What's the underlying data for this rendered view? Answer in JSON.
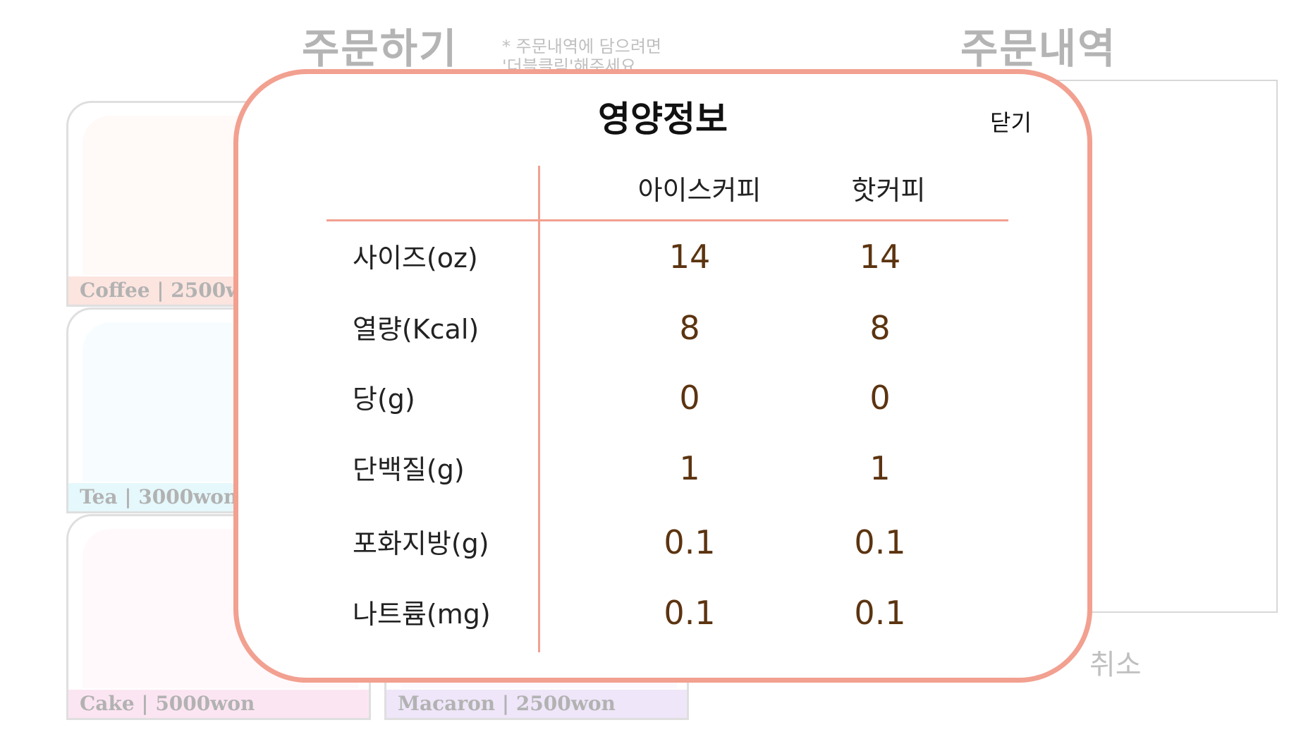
{
  "background": {
    "order_heading": "주문하기",
    "order_note_line1": "* 주문내역에 담으려면",
    "order_note_line2": "'더블클릭'해주세요",
    "history_heading": "주문내역",
    "cancel_label": "취소",
    "menu_cards": [
      {
        "label": "Coffee | 2500won",
        "color": "#f6b8ab"
      },
      {
        "label": "Tea | 3000won",
        "color": "#b9ebf7"
      },
      {
        "label": "Cake | 5000won",
        "color": "#f7b9dc"
      },
      {
        "label": "Macaron | 2500won",
        "color": "#d4bdf0"
      }
    ]
  },
  "modal": {
    "title": "영양정보",
    "close_label": "닫기",
    "columns": [
      "아이스커피",
      "핫커피"
    ],
    "rows": [
      {
        "label": "사이즈(oz)",
        "values": [
          "14",
          "14"
        ]
      },
      {
        "label": "열량(Kcal)",
        "values": [
          "8",
          "8"
        ]
      },
      {
        "label": "당(g)",
        "values": [
          "0",
          "0"
        ]
      },
      {
        "label": "단백질(g)",
        "values": [
          "1",
          "1"
        ]
      },
      {
        "label": "포화지방(g)",
        "values": [
          "0.1",
          "0.1"
        ]
      },
      {
        "label": "나트륨(mg)",
        "values": [
          "0.1",
          "0.1"
        ]
      }
    ],
    "accent_color": "#f2a090",
    "value_color": "#5c3410"
  }
}
